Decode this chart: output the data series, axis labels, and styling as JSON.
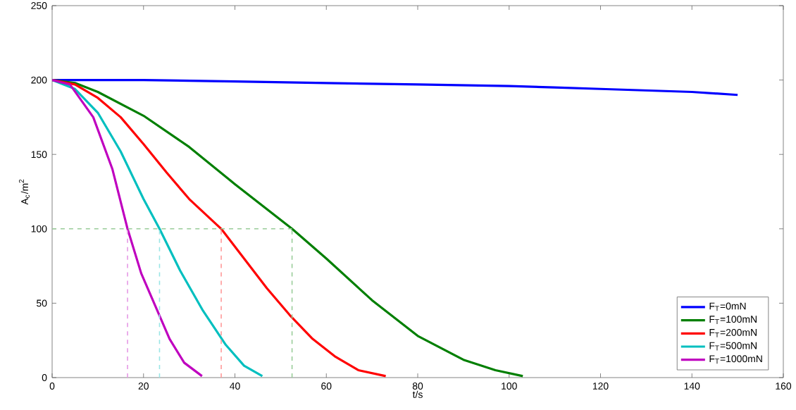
{
  "chart_data": {
    "type": "line",
    "xlabel": "t/s",
    "ylabel": "A$_{c}$/m$^{2}$",
    "xlim": [
      0,
      160
    ],
    "ylim": [
      0,
      250
    ],
    "xticks": [
      0,
      20,
      40,
      60,
      80,
      100,
      120,
      140,
      160
    ],
    "yticks": [
      0,
      50,
      100,
      150,
      200,
      250
    ],
    "grid": false,
    "legend": "bottom right",
    "line_style": "solid",
    "series": [
      {
        "name": "F$_{T}$=0mN",
        "color": "#0000ff",
        "x": [
          0,
          20,
          40,
          60,
          80,
          100,
          110,
          120,
          130,
          140,
          150
        ],
        "values": [
          200,
          200,
          199,
          198,
          197,
          196,
          195,
          194,
          193,
          192,
          190
        ]
      },
      {
        "name": "F$_{T}$=100mN",
        "color": "#007f00",
        "x": [
          0,
          5,
          10,
          20,
          30,
          40,
          52.5,
          60,
          70,
          80,
          90,
          97,
          103
        ],
        "values": [
          200,
          198,
          192,
          176,
          155,
          130,
          100,
          80,
          52,
          28,
          12,
          5,
          1
        ]
      },
      {
        "name": "F$_{T}$=200mN",
        "color": "#ff0000",
        "x": [
          0,
          5,
          10,
          15,
          20,
          25,
          30,
          37,
          42,
          47,
          52,
          57,
          62,
          67,
          73
        ],
        "values": [
          200,
          197,
          188,
          175,
          157,
          138,
          120,
          100,
          80,
          60,
          42,
          26,
          14,
          5,
          1
        ]
      },
      {
        "name": "F$_{T}$=500mN",
        "color": "#00bfbf",
        "x": [
          0,
          5,
          10,
          15,
          20,
          23.5,
          28,
          33,
          38,
          42,
          46
        ],
        "values": [
          200,
          194,
          178,
          152,
          120,
          100,
          72,
          45,
          22,
          8,
          1
        ]
      },
      {
        "name": "F$_{T}$=1000mN",
        "color": "#bf00bf",
        "x": [
          0,
          3.9,
          9,
          13.2,
          16.5,
          19.5,
          22.6,
          25.7,
          28.9,
          32.8
        ],
        "values": [
          200,
          197,
          175,
          140,
          100,
          70,
          48,
          26,
          10,
          1
        ]
      },
      {
        "type": "line",
        "line_style": "dashed",
        "color": "#99cc99",
        "x": [
          0,
          52.5
        ],
        "values": [
          100,
          100
        ]
      },
      {
        "type": "line",
        "line_style": "dashed",
        "color": "#99cc99",
        "x": [
          52.5,
          52.5
        ],
        "values": [
          0,
          100
        ]
      },
      {
        "type": "line",
        "line_style": "dashed",
        "color": "#ff9999",
        "x": [
          37,
          37
        ],
        "values": [
          0,
          100
        ]
      },
      {
        "type": "line",
        "line_style": "dashed",
        "color": "#99e5e5",
        "x": [
          23.5,
          23.5
        ],
        "values": [
          0,
          100
        ]
      },
      {
        "type": "line",
        "line_style": "dashed",
        "color": "#e599e5",
        "x": [
          16.5,
          16.5
        ],
        "values": [
          0,
          100
        ]
      }
    ]
  }
}
